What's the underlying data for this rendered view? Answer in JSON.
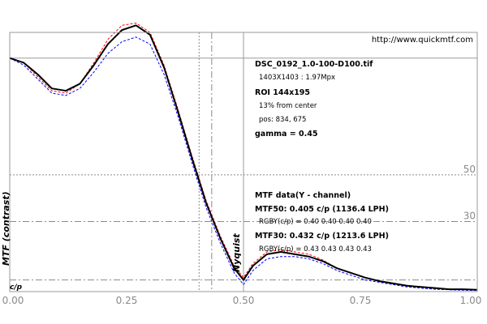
{
  "chart_data": {
    "type": "line",
    "url_text": "http://www.quickmtf.com",
    "info": {
      "file": "DSC_0192_1.0-100-D100.tif",
      "dims": "1403X1403 : 1.97Mpx",
      "roi": "ROI 144x195",
      "from_center": "13% from center",
      "pos": "pos: 834, 675",
      "gamma": "gamma = 0.45"
    },
    "mtf": {
      "heading": "MTF data(Y - channel)",
      "mtf50": "MTF50: 0.405 c/p (1136.4 LPH)",
      "mtf50_rgby": "RGBY(c/p) = 0.40 0.40 0.40 0.40",
      "mtf30": "MTF30: 0.432 c/p (1213.6 LPH)",
      "mtf30_rgby": "RGBY(c/p) = 0.43 0.43 0.43 0.43"
    },
    "ylabel": "MTF (contrast)",
    "xunit": "c/p",
    "nyquist_label": "Nyquist",
    "xlim": [
      0,
      1
    ],
    "ylim": [
      0,
      1.11
    ],
    "xticks": [
      "0.00",
      "0.25",
      "0.50",
      "0.75",
      "1.00"
    ],
    "xtick_values": [
      0,
      0.25,
      0.5,
      0.75,
      1.0
    ],
    "ref_levels": [
      {
        "label": "50",
        "y": 0.5
      },
      {
        "label": "30",
        "y": 0.3
      }
    ],
    "mtf10_level": 0.05,
    "nyquist_x": 0.5,
    "mtf50_x": 0.405,
    "mtf30_x": 0.432,
    "upper_ref_y": 1.0,
    "series": [
      {
        "color": "#000000",
        "x": [
          0,
          0.03,
          0.06,
          0.09,
          0.12,
          0.15,
          0.18,
          0.21,
          0.24,
          0.27,
          0.3,
          0.33,
          0.36,
          0.39,
          0.42,
          0.45,
          0.48,
          0.5,
          0.52,
          0.55,
          0.58,
          0.61,
          0.64,
          0.67,
          0.7,
          0.73,
          0.76,
          0.79,
          0.82,
          0.85,
          0.88,
          0.91,
          0.94,
          0.97,
          1.0
        ],
        "y": [
          1.0,
          0.98,
          0.93,
          0.87,
          0.86,
          0.89,
          0.97,
          1.06,
          1.12,
          1.14,
          1.1,
          0.96,
          0.77,
          0.57,
          0.38,
          0.23,
          0.1,
          0.05,
          0.11,
          0.16,
          0.17,
          0.16,
          0.15,
          0.13,
          0.1,
          0.08,
          0.06,
          0.045,
          0.035,
          0.025,
          0.02,
          0.015,
          0.01,
          0.01,
          0.008
        ]
      },
      {
        "color": "#ff0000",
        "x": [
          0,
          0.03,
          0.06,
          0.09,
          0.12,
          0.15,
          0.18,
          0.21,
          0.24,
          0.27,
          0.3,
          0.33,
          0.36,
          0.39,
          0.42,
          0.45,
          0.48,
          0.5,
          0.52,
          0.55,
          0.58,
          0.61,
          0.64,
          0.67,
          0.7,
          0.73,
          0.76,
          0.79,
          0.82,
          0.85,
          0.88,
          0.91,
          0.94,
          0.97,
          1.0
        ],
        "y": [
          1.0,
          0.98,
          0.92,
          0.86,
          0.85,
          0.89,
          0.98,
          1.08,
          1.14,
          1.15,
          1.11,
          0.97,
          0.78,
          0.58,
          0.39,
          0.24,
          0.11,
          0.06,
          0.12,
          0.17,
          0.18,
          0.17,
          0.16,
          0.135,
          0.1,
          0.08,
          0.06,
          0.045,
          0.035,
          0.025,
          0.02,
          0.015,
          0.01,
          0.01,
          0.008
        ]
      },
      {
        "color": "#009900",
        "x": [
          0,
          0.03,
          0.06,
          0.09,
          0.12,
          0.15,
          0.18,
          0.21,
          0.24,
          0.27,
          0.3,
          0.33,
          0.36,
          0.39,
          0.42,
          0.45,
          0.48,
          0.5,
          0.52,
          0.55,
          0.58,
          0.61,
          0.64,
          0.67,
          0.7,
          0.73,
          0.76,
          0.79,
          0.82,
          0.85,
          0.88,
          0.91,
          0.94,
          0.97,
          1.0
        ],
        "y": [
          1.0,
          0.98,
          0.93,
          0.87,
          0.86,
          0.89,
          0.97,
          1.06,
          1.12,
          1.14,
          1.1,
          0.96,
          0.77,
          0.57,
          0.38,
          0.23,
          0.1,
          0.05,
          0.11,
          0.16,
          0.17,
          0.16,
          0.15,
          0.13,
          0.1,
          0.08,
          0.06,
          0.045,
          0.035,
          0.025,
          0.02,
          0.015,
          0.01,
          0.01,
          0.008
        ]
      },
      {
        "color": "#0000ff",
        "x": [
          0,
          0.03,
          0.06,
          0.09,
          0.12,
          0.15,
          0.18,
          0.21,
          0.24,
          0.27,
          0.3,
          0.33,
          0.36,
          0.39,
          0.42,
          0.45,
          0.48,
          0.5,
          0.52,
          0.55,
          0.58,
          0.61,
          0.64,
          0.67,
          0.7,
          0.73,
          0.76,
          0.79,
          0.82,
          0.85,
          0.88,
          0.91,
          0.94,
          0.97,
          1.0
        ],
        "y": [
          1.0,
          0.97,
          0.91,
          0.85,
          0.84,
          0.87,
          0.94,
          1.02,
          1.07,
          1.09,
          1.06,
          0.93,
          0.75,
          0.55,
          0.36,
          0.21,
          0.08,
          0.03,
          0.09,
          0.14,
          0.15,
          0.15,
          0.14,
          0.12,
          0.09,
          0.07,
          0.05,
          0.04,
          0.03,
          0.02,
          0.015,
          0.01,
          0.008,
          0.006,
          0.005
        ]
      }
    ]
  }
}
